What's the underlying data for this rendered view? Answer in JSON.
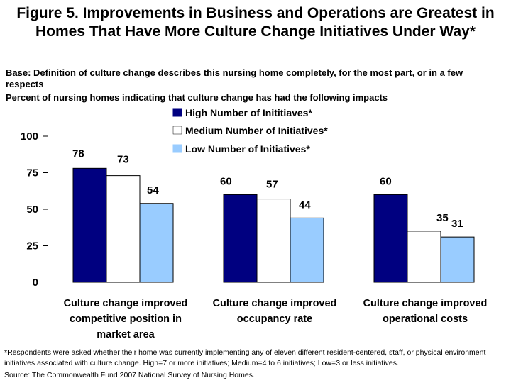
{
  "title": "Figure 5. Improvements in Business and Operations are Greatest in Homes That Have More Culture Change Initiatives Under Way*",
  "base_text": "Base: Definition of culture change describes this nursing home completely, for the most part, or in a few respects",
  "percent_text": "Percent of nursing homes indicating that culture change has had the following impacts",
  "footnote": "*Respondents were asked whether their home was currently implementing any of eleven different resident-centered, staff, or physical environment initiatives associated with culture change. High=7 or more initiatives; Medium=4 to 6 initiatives; Low=3 or less initiatives.",
  "source": "Source: The Commonwealth Fund 2007 National Survey of Nursing Homes.",
  "chart_data": {
    "type": "bar",
    "categories": [
      [
        "Culture change improved",
        "competitive position in",
        "market area"
      ],
      [
        "Culture change improved",
        "occupancy rate"
      ],
      [
        "Culture change improved",
        "operational costs"
      ]
    ],
    "series": [
      {
        "name": "High Number of Inititiaves*",
        "color": "#000080",
        "values": [
          78,
          60,
          60
        ]
      },
      {
        "name": "Medium Number of Initiatives*",
        "color": "#ffffff",
        "values": [
          73,
          57,
          35
        ]
      },
      {
        "name": "Low Number of Initiatives*",
        "color": "#99ccff",
        "values": [
          54,
          44,
          31
        ]
      }
    ],
    "yticks": [
      "0",
      "25",
      "50",
      "75",
      "100"
    ],
    "ylim": [
      0,
      100
    ],
    "legend_position": "top-right",
    "grid": false
  }
}
